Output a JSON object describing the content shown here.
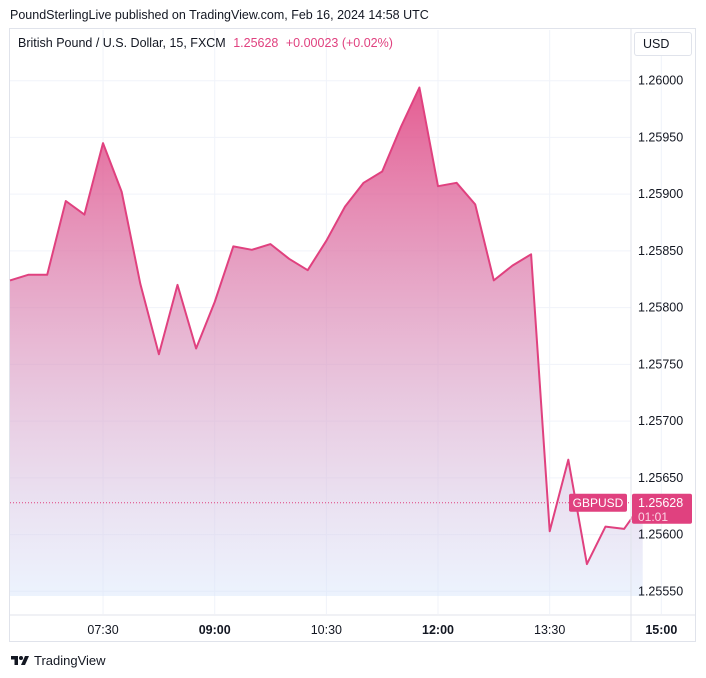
{
  "header": {
    "publish_line": "PoundSterlingLive published on TradingView.com, Feb 16, 2024 14:58 UTC"
  },
  "legend": {
    "symbol": "British Pound / U.S. Dollar, 15, FXCM",
    "price": "1.25628",
    "change": "+0.00023 (+0.02%)"
  },
  "toolbar": {
    "currency_label": "USD"
  },
  "footer": {
    "logo_text": "TradingView",
    "logo_icon": "tradingview-logo-icon"
  },
  "colors": {
    "line": "#e0417f",
    "area_top": "#e0417f",
    "area_bottom": "#d6e4fb",
    "grid": "#f0f3fa",
    "axis_text": "#131722",
    "badge": "#e0417f"
  },
  "chart_data": {
    "type": "area",
    "title": "",
    "xlabel": "",
    "ylabel": "",
    "ylim": [
      1.2553,
      1.2602
    ],
    "y_ticks": [
      "1.25550",
      "1.25600",
      "1.25650",
      "1.25700",
      "1.25750",
      "1.25800",
      "1.25850",
      "1.25900",
      "1.25950",
      "1.26000"
    ],
    "x_ticks": [
      {
        "label": "07:30",
        "time": "07:30",
        "bold": false
      },
      {
        "label": "09:00",
        "time": "09:00",
        "bold": true
      },
      {
        "label": "10:30",
        "time": "10:30",
        "bold": false
      },
      {
        "label": "12:00",
        "time": "12:00",
        "bold": true
      },
      {
        "label": "13:30",
        "time": "13:30",
        "bold": false
      },
      {
        "label": "15:00",
        "time": "15:00",
        "bold": true
      }
    ],
    "grid": true,
    "series": [
      {
        "x": [
          "06:15",
          "06:30",
          "06:45",
          "07:00",
          "07:15",
          "07:30",
          "07:45",
          "08:00",
          "08:15",
          "08:30",
          "08:45",
          "09:00",
          "09:15",
          "09:30",
          "09:45",
          "10:00",
          "10:15",
          "10:30",
          "10:45",
          "11:00",
          "11:15",
          "11:30",
          "11:45",
          "12:00",
          "12:15",
          "12:30",
          "12:45",
          "13:00",
          "13:15",
          "13:30",
          "13:45",
          "14:00",
          "14:15",
          "14:30",
          "14:45"
        ],
        "values": [
          1.25824,
          1.25829,
          1.25829,
          1.25894,
          1.25882,
          1.25945,
          1.25902,
          1.25821,
          1.25759,
          1.2582,
          1.25764,
          1.25805,
          1.25854,
          1.25851,
          1.25856,
          1.25843,
          1.25833,
          1.25859,
          1.25889,
          1.2591,
          1.2592,
          1.25959,
          1.25994,
          1.25907,
          1.2591,
          1.25891,
          1.25824,
          1.25837,
          1.25847,
          1.25603,
          1.25666,
          1.25574,
          1.25607,
          1.25605,
          1.25628
        ]
      }
    ],
    "last_price": {
      "symbol_label": "GBPUSD",
      "price_label": "1.25628",
      "countdown": "01:01",
      "value": 1.25628
    }
  }
}
